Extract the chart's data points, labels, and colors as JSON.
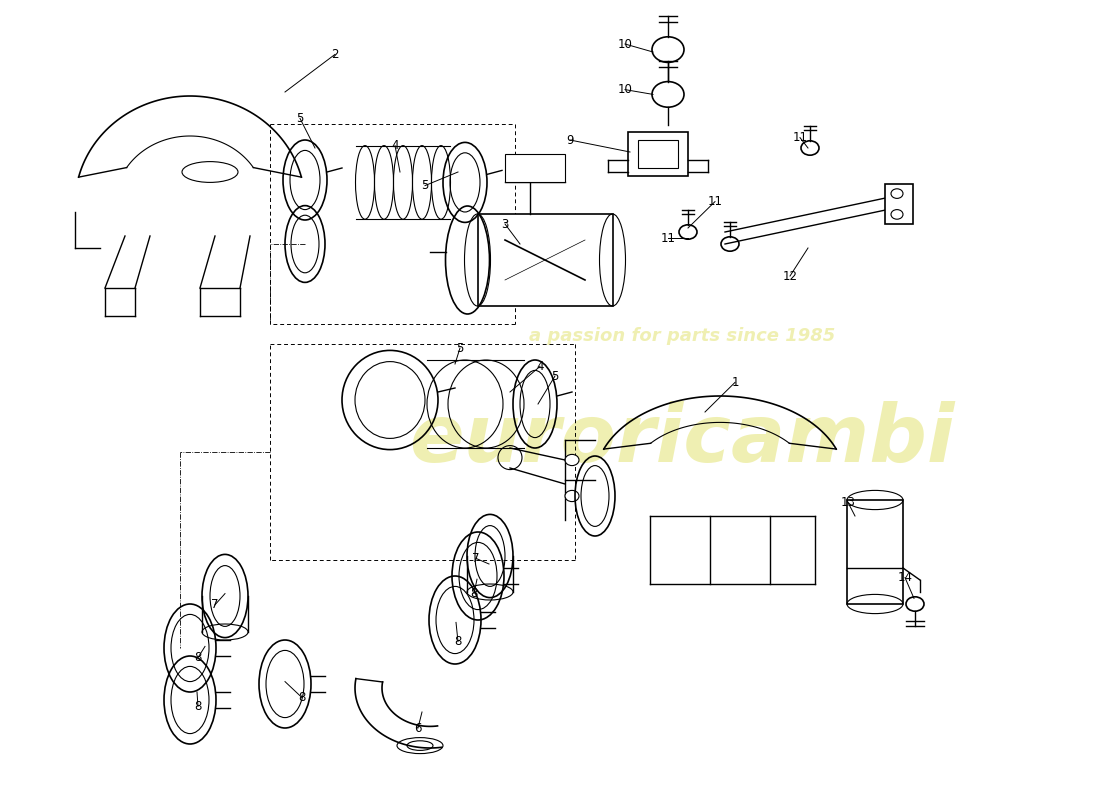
{
  "bg_color": "#ffffff",
  "line_color": "#000000",
  "watermark_text1": "euroricambi",
  "watermark_text2": "a passion for parts since 1985",
  "watermark_color": "#cccc00",
  "watermark_alpha": 0.3,
  "lw_main": 1.2,
  "lw_thin": 0.8
}
